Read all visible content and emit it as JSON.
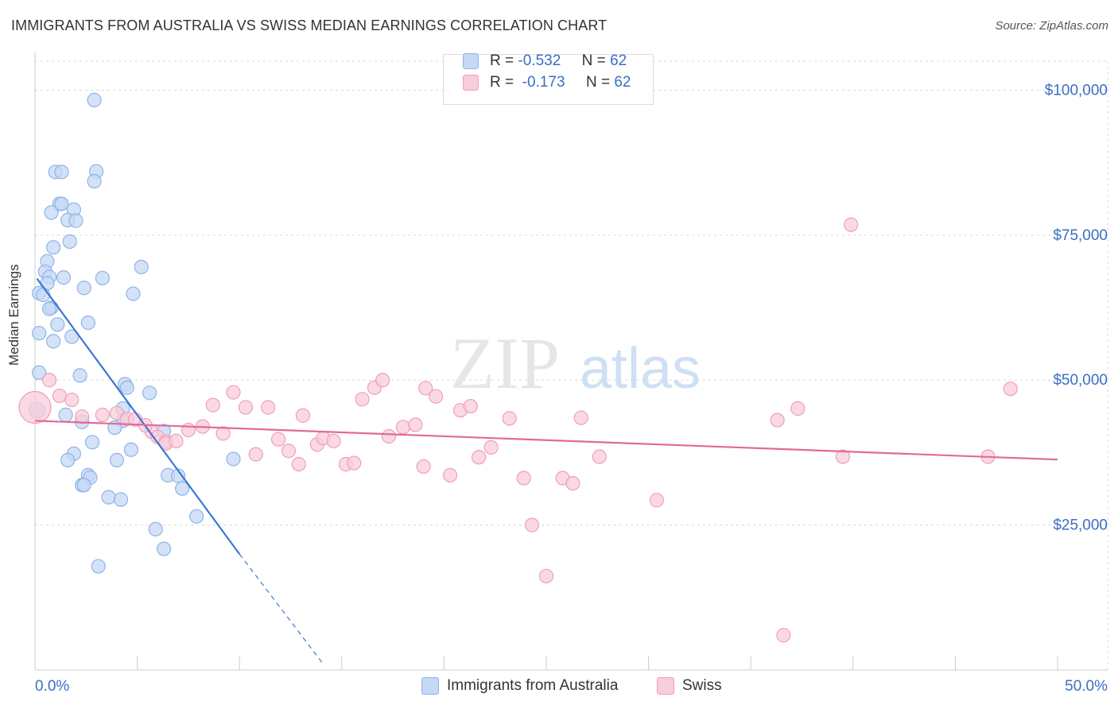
{
  "header": {
    "title": "IMMIGRANTS FROM AUSTRALIA VS SWISS MEDIAN EARNINGS CORRELATION CHART",
    "source": "Source: ZipAtlas.com"
  },
  "watermark": {
    "zip": "ZIP",
    "atlas": "atlas"
  },
  "legend": {
    "rows": [
      {
        "r_label": "R =",
        "r_value": "-0.532",
        "n_label": "N =",
        "n_value": "62",
        "fill": "#c5d8f5",
        "stroke": "#8fb3e8"
      },
      {
        "r_label": "R =",
        "r_value": "-0.173",
        "n_label": "N =",
        "n_value": "62",
        "fill": "#f9ccda",
        "stroke": "#ef9fb8"
      }
    ]
  },
  "bottom_legend": {
    "items": [
      {
        "label": "Immigrants from Australia",
        "fill": "#c5d8f5",
        "stroke": "#8fb3e8"
      },
      {
        "label": "Swiss",
        "fill": "#f9ccda",
        "stroke": "#ef9fb8"
      }
    ]
  },
  "chart_data": {
    "type": "scatter",
    "title": "IMMIGRANTS FROM AUSTRALIA VS SWISS MEDIAN EARNINGS CORRELATION CHART",
    "xlabel": "",
    "ylabel": "Median Earnings",
    "xlim": [
      0,
      50
    ],
    "ylim": [
      0,
      105000
    ],
    "x_tick_labels": [
      "0.0%",
      "50.0%"
    ],
    "y_ticks": [
      25000,
      50000,
      75000,
      100000
    ],
    "y_tick_labels": [
      "$25,000",
      "$50,000",
      "$75,000",
      "$100,000"
    ],
    "colors": {
      "australia": "#3a78d4",
      "swiss": "#e06b95",
      "axis_text": "#3a6fc4"
    },
    "series": [
      {
        "name": "Immigrants from Australia",
        "fill": "#c5d8f5",
        "stroke": "#8fb3e8",
        "points": [
          [
            2.9,
            98300
          ],
          [
            1.0,
            85900
          ],
          [
            1.3,
            85900
          ],
          [
            3.0,
            86000
          ],
          [
            2.9,
            84300
          ],
          [
            1.2,
            80400
          ],
          [
            1.3,
            80400
          ],
          [
            0.8,
            78900
          ],
          [
            1.9,
            79400
          ],
          [
            1.6,
            77600
          ],
          [
            2.0,
            77500
          ],
          [
            1.7,
            73900
          ],
          [
            0.9,
            72900
          ],
          [
            0.6,
            70500
          ],
          [
            5.2,
            69500
          ],
          [
            0.5,
            68700
          ],
          [
            0.7,
            67800
          ],
          [
            1.4,
            67700
          ],
          [
            3.3,
            67600
          ],
          [
            0.6,
            66700
          ],
          [
            0.2,
            65000
          ],
          [
            0.4,
            64700
          ],
          [
            2.4,
            65900
          ],
          [
            4.8,
            64900
          ],
          [
            0.8,
            62500
          ],
          [
            0.7,
            62300
          ],
          [
            1.1,
            59600
          ],
          [
            2.6,
            59900
          ],
          [
            0.2,
            58100
          ],
          [
            1.8,
            57500
          ],
          [
            0.9,
            56700
          ],
          [
            0.2,
            51300
          ],
          [
            2.2,
            50800
          ],
          [
            4.4,
            49300
          ],
          [
            4.5,
            48700
          ],
          [
            5.6,
            47800
          ],
          [
            0.1,
            44800
          ],
          [
            4.3,
            45100
          ],
          [
            1.5,
            44000
          ],
          [
            4.3,
            43000
          ],
          [
            2.3,
            42800
          ],
          [
            3.9,
            41800
          ],
          [
            6.3,
            41200
          ],
          [
            2.8,
            39300
          ],
          [
            4.7,
            38000
          ],
          [
            1.9,
            37300
          ],
          [
            9.7,
            36400
          ],
          [
            1.6,
            36200
          ],
          [
            4.0,
            36200
          ],
          [
            2.6,
            33600
          ],
          [
            6.5,
            33600
          ],
          [
            7.0,
            33500
          ],
          [
            2.7,
            33200
          ],
          [
            2.3,
            31900
          ],
          [
            2.4,
            31900
          ],
          [
            7.2,
            31300
          ],
          [
            3.6,
            29800
          ],
          [
            4.2,
            29400
          ],
          [
            7.9,
            26500
          ],
          [
            5.9,
            24300
          ],
          [
            6.3,
            20900
          ],
          [
            3.1,
            17900
          ]
        ]
      },
      {
        "name": "Swiss",
        "fill": "#f9ccda",
        "stroke": "#ef9fb8",
        "points": [
          [
            0.0,
            45300
          ],
          [
            0.7,
            50000
          ],
          [
            1.2,
            47300
          ],
          [
            1.8,
            46600
          ],
          [
            2.3,
            43700
          ],
          [
            3.3,
            44000
          ],
          [
            4.0,
            44300
          ],
          [
            4.5,
            43300
          ],
          [
            4.9,
            43200
          ],
          [
            5.7,
            41100
          ],
          [
            5.4,
            42200
          ],
          [
            6.0,
            40200
          ],
          [
            6.4,
            39400
          ],
          [
            6.4,
            39100
          ],
          [
            6.9,
            39500
          ],
          [
            7.5,
            41400
          ],
          [
            8.2,
            42000
          ],
          [
            8.7,
            45700
          ],
          [
            9.2,
            40800
          ],
          [
            9.7,
            47900
          ],
          [
            10.3,
            45300
          ],
          [
            10.8,
            37200
          ],
          [
            11.4,
            45300
          ],
          [
            11.9,
            39800
          ],
          [
            12.4,
            37800
          ],
          [
            12.9,
            35500
          ],
          [
            13.1,
            43900
          ],
          [
            13.8,
            38900
          ],
          [
            14.1,
            40000
          ],
          [
            14.6,
            39500
          ],
          [
            15.2,
            35500
          ],
          [
            15.6,
            35700
          ],
          [
            16.0,
            46700
          ],
          [
            16.6,
            48700
          ],
          [
            17.0,
            50000
          ],
          [
            17.3,
            40300
          ],
          [
            18.0,
            41900
          ],
          [
            18.6,
            42300
          ],
          [
            19.0,
            35100
          ],
          [
            19.1,
            48600
          ],
          [
            19.6,
            47200
          ],
          [
            20.3,
            33600
          ],
          [
            20.8,
            44800
          ],
          [
            21.3,
            45500
          ],
          [
            21.7,
            36700
          ],
          [
            22.3,
            38400
          ],
          [
            23.2,
            43400
          ],
          [
            23.9,
            33100
          ],
          [
            24.3,
            25000
          ],
          [
            25.0,
            16200
          ],
          [
            25.8,
            33100
          ],
          [
            26.3,
            32200
          ],
          [
            26.7,
            43500
          ],
          [
            27.6,
            36800
          ],
          [
            30.4,
            29300
          ],
          [
            36.3,
            43100
          ],
          [
            36.6,
            6000
          ],
          [
            37.3,
            45100
          ],
          [
            39.5,
            36800
          ],
          [
            39.9,
            76800
          ],
          [
            46.6,
            36800
          ],
          [
            47.7,
            48500
          ]
        ]
      }
    ],
    "trend_lines": [
      {
        "series": "Immigrants from Australia",
        "solid": [
          [
            0.1,
            67500
          ],
          [
            10.0,
            20000
          ]
        ],
        "dashed": [
          [
            10.0,
            20000
          ],
          [
            14.1,
            1000
          ]
        ]
      },
      {
        "series": "Swiss",
        "solid": [
          [
            0.0,
            43000
          ],
          [
            50.0,
            36300
          ]
        ]
      }
    ]
  }
}
